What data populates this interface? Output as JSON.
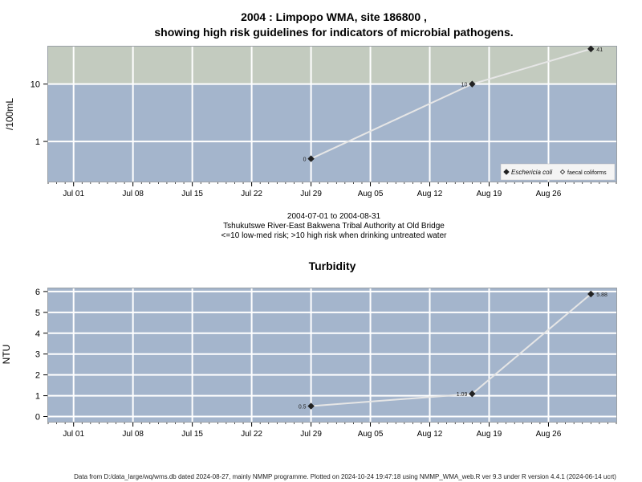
{
  "chart_data": [
    {
      "type": "line",
      "title_line1": "2004 : Limpopo WMA, site 186800 ,",
      "title_line2": "showing high risk guidelines for indicators of microbial pathogens.",
      "ylabel": "/100mL",
      "y_scale": "log",
      "y_ticks": [
        1,
        10
      ],
      "y_tick_labels": [
        "1",
        "10"
      ],
      "ylim": [
        0.2,
        45
      ],
      "guideline": 10,
      "x_ticks": [
        "Jul 01",
        "Jul 08",
        "Jul 15",
        "Jul 22",
        "Jul 29",
        "Aug 05",
        "Aug 12",
        "Aug 19",
        "Aug 26"
      ],
      "x_tick_dates": [
        "2004-07-01",
        "2004-07-08",
        "2004-07-15",
        "2004-07-22",
        "2004-07-29",
        "2004-08-05",
        "2004-08-12",
        "2004-08-19",
        "2004-08-26"
      ],
      "xlim": [
        "2004-06-28",
        "2004-09-03"
      ],
      "series": [
        {
          "name": "Eschericia coli",
          "marker": "filled-diamond",
          "x": [
            "2004-07-29",
            "2004-08-17",
            "2004-08-31"
          ],
          "values": [
            0.5,
            10,
            41
          ],
          "point_labels": [
            "0",
            "10",
            "41"
          ]
        }
      ],
      "legend": {
        "placement": "bottom-right",
        "entries": [
          {
            "label": "Eschericia coli",
            "marker": "filled-diamond",
            "italic": true
          },
          {
            "label": "faecal coliforms",
            "marker": "open-diamond",
            "italic": false
          }
        ]
      },
      "colors": {
        "high_risk_band": "#c3cbbf",
        "low_risk_band": "#a4b5cc",
        "grid": "#ffffff",
        "line": "#e6e6e6",
        "marker": "#222222"
      },
      "caption": [
        "2004-07-01 to 2004-08-31",
        "Tshukutswe River-East Bakwena Tribal Authority at Old Bridge",
        "<=10 low-med risk; >10 high risk when drinking untreated water"
      ]
    },
    {
      "type": "line",
      "title": "Turbidity",
      "ylabel": "NTU",
      "y_ticks": [
        0,
        1,
        2,
        3,
        4,
        5,
        6
      ],
      "ylim": [
        -0.25,
        6.15
      ],
      "x_ticks": [
        "Jul 01",
        "Jul 08",
        "Jul 15",
        "Jul 22",
        "Jul 29",
        "Aug 05",
        "Aug 12",
        "Aug 19",
        "Aug 26"
      ],
      "x_tick_dates": [
        "2004-07-01",
        "2004-07-08",
        "2004-07-15",
        "2004-07-22",
        "2004-07-29",
        "2004-08-05",
        "2004-08-12",
        "2004-08-19",
        "2004-08-26"
      ],
      "xlim": [
        "2004-06-28",
        "2004-09-03"
      ],
      "series": [
        {
          "marker": "filled-diamond",
          "x": [
            "2004-07-29",
            "2004-08-17",
            "2004-08-31"
          ],
          "values": [
            0.5,
            1.09,
            5.88
          ],
          "point_labels": [
            "0.5",
            "1.09",
            "5.88"
          ]
        }
      ],
      "colors": {
        "background": "#a4b5cc",
        "grid": "#ffffff",
        "line": "#e6e6e6",
        "marker": "#222222"
      }
    }
  ],
  "footer": "Data from D:/data_large/wq/wms.db dated 2024-08-27, mainly NMMP programme. Plotted on 2024-10-24 19:47:18 using NMMP_WMA_web.R ver 9.3 under R version 4.4.1 (2024-06-14 ucrt)"
}
